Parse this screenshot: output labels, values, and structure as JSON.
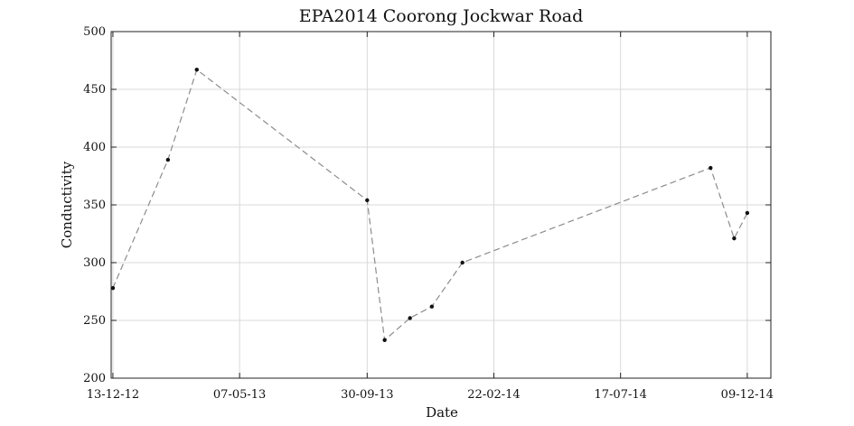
{
  "chart_data": {
    "type": "line",
    "title": "EPA2014 Coorong Jockwar Road",
    "xlabel": "Date",
    "ylabel": "Conductivity",
    "xlim": [
      "2012-12-11",
      "2015-01-05"
    ],
    "ylim": [
      200,
      500
    ],
    "yticks": [
      200,
      250,
      300,
      350,
      400,
      450,
      500
    ],
    "xticks": [
      {
        "date": "2012-12-13",
        "label": "13-12-12"
      },
      {
        "date": "2013-05-07",
        "label": "07-05-13"
      },
      {
        "date": "2013-09-30",
        "label": "30-09-13"
      },
      {
        "date": "2014-02-22",
        "label": "22-02-14"
      },
      {
        "date": "2014-07-17",
        "label": "17-07-14"
      },
      {
        "date": "2014-12-09",
        "label": "09-12-14"
      }
    ],
    "grid": true,
    "series": [
      {
        "color": "#8c8c8c",
        "marker_color": "#111111",
        "line_style": "dashed",
        "x": [
          "2012-12-13",
          "2013-02-14",
          "2013-03-19",
          "2013-09-30",
          "2013-10-20",
          "2013-11-18",
          "2013-12-13",
          "2014-01-17",
          "2014-10-28",
          "2014-11-24",
          "2014-12-09"
        ],
        "y": [
          278,
          389,
          467,
          354,
          233,
          252,
          262,
          300,
          382,
          321,
          343
        ]
      }
    ]
  }
}
